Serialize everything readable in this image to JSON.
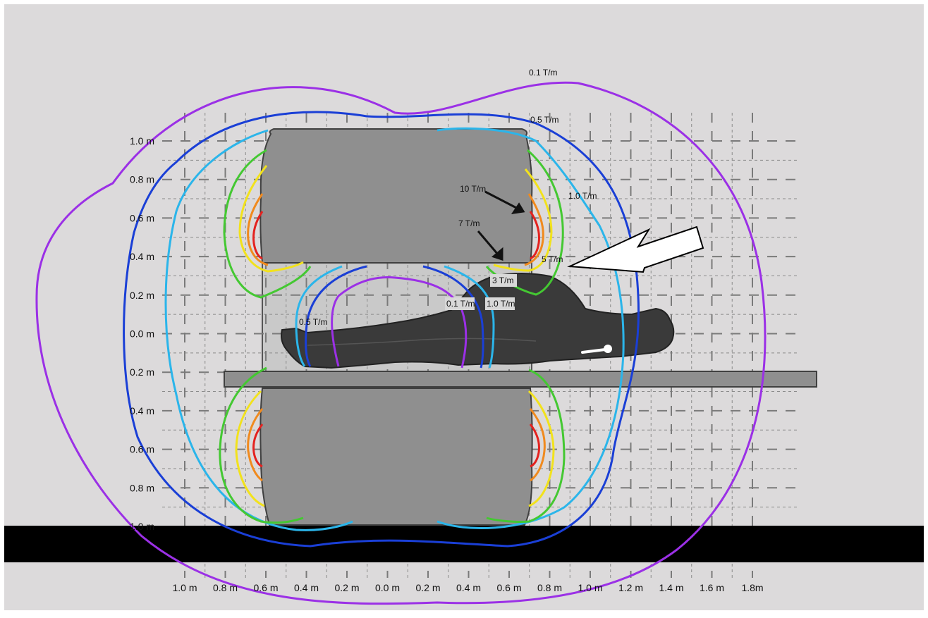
{
  "axes": {
    "y_labels": [
      "1.0 m",
      "0.8 m",
      "0.6 m",
      "0.4 m",
      "0.2 m",
      "0.0 m",
      "0.2 m",
      "0.4 m",
      "0.6 m",
      "0.8 m",
      "1.0 m"
    ],
    "x_labels": [
      "1.0 m",
      "0.8 m",
      "0.6 m",
      "0.4 m",
      "0.2 m",
      "0.0 m",
      "0.2 m",
      "0.4 m",
      "0.6 m",
      "0.8 m",
      "1.0 m",
      "1.2 m",
      "1.4 m",
      "1.6 m",
      "1.8m"
    ]
  },
  "contours": [
    {
      "label": "0.1 T/m",
      "color": "#9b30e6"
    },
    {
      "label": "0.5 T/m",
      "color": "#1a3fd6"
    },
    {
      "label": "1.0 T/m",
      "color": "#2bb5ea"
    },
    {
      "label": "3 T/m",
      "color": "#44c832"
    },
    {
      "label": "5 T/m",
      "color": "#f2e21c"
    },
    {
      "label": "7 T/m",
      "color": "#f08a1e"
    },
    {
      "label": "10 T/m",
      "color": "#e4221f"
    }
  ],
  "labels": {
    "outer_01": "0.1 T/m",
    "outer_05": "0.5 T/m",
    "outer_10": "1.0 T/m",
    "arrow_10": "10 T/m",
    "arrow_7": "7 T/m",
    "label_5": "5 T/m",
    "box_3": "3 T/m",
    "box_01": "0.1 T/m",
    "box_10": "1.0 T/m",
    "bore_05": "0.5 T/m"
  },
  "colors": {
    "background": "#dcdadb",
    "magnet": "#8f8f8f",
    "bore": "#c9c9c9",
    "floor": "#000000",
    "patient": "#3a3a3a"
  }
}
